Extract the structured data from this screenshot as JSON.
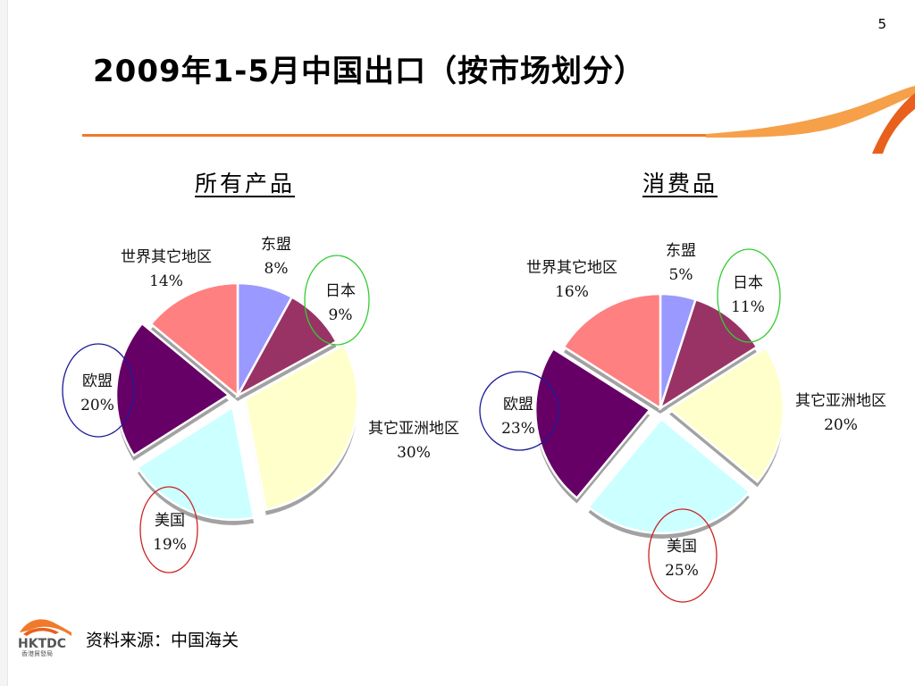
{
  "slide": {
    "page_number": "5",
    "title": "2009年1-5月中国出口（按市场划分）",
    "source": "资料来源：中国海关",
    "logo_text": "HKTDC",
    "logo_subtext": "香港貿發局"
  },
  "colors": {
    "accent_line": "#f07a2a",
    "asean": "#9999ff",
    "japan": "#993366",
    "other_asia": "#ffffcc",
    "usa": "#ccffff",
    "eu": "#660066",
    "rest_of_world": "#ff8080",
    "circle_green": "#33cc33",
    "circle_red": "#cc2222",
    "circle_blue": "#1a1a99"
  },
  "chart_data": [
    {
      "type": "pie",
      "title": "所有产品",
      "categories": [
        "东盟",
        "日本",
        "其它亚洲地区",
        "美国",
        "欧盟",
        "世界其它地区"
      ],
      "values": [
        8,
        9,
        30,
        19,
        20,
        14
      ],
      "labels": [
        "8%",
        "9%",
        "30%",
        "19%",
        "20%",
        "14%"
      ],
      "highlighted": [
        "日本",
        "美国",
        "欧盟"
      ]
    },
    {
      "type": "pie",
      "title": "消费品",
      "categories": [
        "东盟",
        "日本",
        "其它亚洲地区",
        "美国",
        "欧盟",
        "世界其它地区"
      ],
      "values": [
        5,
        11,
        20,
        25,
        23,
        16
      ],
      "labels": [
        "5%",
        "11%",
        "20%",
        "25%",
        "23%",
        "16%"
      ],
      "highlighted": [
        "日本",
        "美国",
        "欧盟"
      ]
    }
  ]
}
